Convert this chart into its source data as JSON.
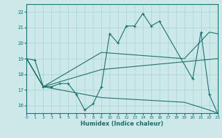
{
  "xlabel": "Humidex (Indice chaleur)",
  "xlim": [
    0,
    23
  ],
  "ylim": [
    15.5,
    22.5
  ],
  "yticks": [
    16,
    17,
    18,
    19,
    20,
    21,
    22
  ],
  "xticks": [
    0,
    1,
    2,
    3,
    4,
    5,
    6,
    7,
    8,
    9,
    10,
    11,
    12,
    13,
    14,
    15,
    16,
    17,
    18,
    19,
    20,
    21,
    22,
    23
  ],
  "bg_color": "#cce8e8",
  "grid_color": "#aad0d0",
  "line_color": "#1a6e6e",
  "jagged_x": [
    0,
    1,
    2,
    3,
    4,
    5,
    6,
    7,
    8,
    9,
    10,
    11,
    12,
    13,
    14,
    15,
    16,
    20,
    21,
    22,
    23
  ],
  "jagged_y": [
    19.0,
    18.9,
    17.2,
    17.2,
    17.4,
    17.4,
    16.7,
    15.7,
    16.1,
    17.2,
    20.6,
    20.0,
    21.1,
    21.1,
    21.9,
    21.1,
    21.4,
    17.7,
    20.7,
    16.7,
    15.5
  ],
  "upper_line_x": [
    0,
    2,
    9,
    19,
    22,
    23
  ],
  "upper_line_y": [
    19.0,
    17.2,
    19.4,
    19.0,
    20.7,
    20.6
  ],
  "mid_line_x": [
    0,
    2,
    9,
    19,
    23
  ],
  "mid_line_y": [
    19.0,
    17.2,
    18.3,
    18.8,
    19.0
  ],
  "lower_line_x": [
    0,
    2,
    9,
    19,
    22,
    23
  ],
  "lower_line_y": [
    19.0,
    17.2,
    16.5,
    16.2,
    15.7,
    15.5
  ]
}
